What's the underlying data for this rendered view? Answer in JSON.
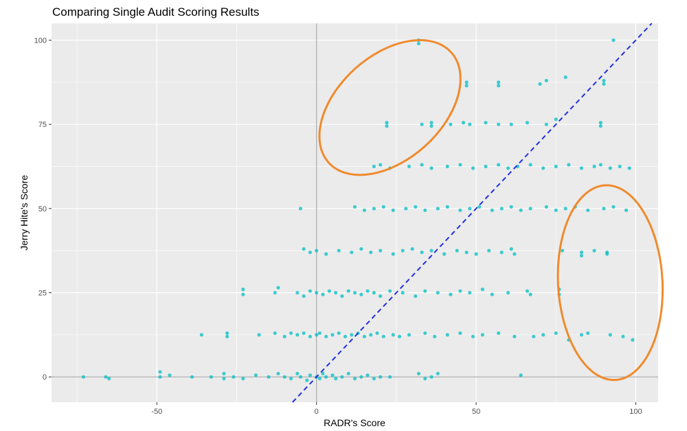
{
  "chart_data": {
    "type": "scatter",
    "title": "Comparing Single Audit Scoring Results",
    "xlabel": "RADR's Score",
    "ylabel": "Jerry Hite's Score",
    "xlim": [
      -83,
      107
    ],
    "ylim": [
      -7.5,
      105
    ],
    "x_ticks": [
      -50,
      0,
      50,
      100
    ],
    "y_ticks": [
      0,
      25,
      50,
      75,
      100
    ],
    "grid": true,
    "colors": {
      "panel": "#ebebeb",
      "grid": "#ffffff",
      "points": "#00bfc4",
      "reference_line": "#1f2fe0",
      "zero_lines": "#a6a6a6",
      "highlight": "#f08a2c"
    },
    "reference_line": {
      "slope": 1,
      "intercept": 0,
      "style": "dashed"
    },
    "highlights": [
      {
        "shape": "ellipse",
        "cx": 23,
        "cy": 80
      },
      {
        "shape": "ellipse",
        "cx": 92,
        "cy": 28
      }
    ],
    "series": [
      {
        "points": [
          [
            -73,
            0
          ],
          [
            -66,
            0
          ],
          [
            -65,
            -0.5
          ],
          [
            -49,
            1.5
          ],
          [
            -49,
            0
          ],
          [
            -46,
            0.5
          ],
          [
            -39,
            0
          ],
          [
            -33,
            0
          ],
          [
            -29,
            1
          ],
          [
            -29,
            -0.5
          ],
          [
            -26,
            0
          ],
          [
            -23,
            -0.5
          ],
          [
            -19,
            0.5
          ],
          [
            -15,
            0
          ],
          [
            -12,
            1
          ],
          [
            -10,
            0
          ],
          [
            -8,
            -0.5
          ],
          [
            -6,
            1
          ],
          [
            -5,
            0
          ],
          [
            -3,
            -1
          ],
          [
            -2,
            0.5
          ],
          [
            0,
            0
          ],
          [
            1,
            -0.5
          ],
          [
            2,
            1
          ],
          [
            3,
            0
          ],
          [
            5,
            0.5
          ],
          [
            6,
            -0.5
          ],
          [
            8,
            0
          ],
          [
            10,
            1
          ],
          [
            12,
            -0.5
          ],
          [
            14,
            0
          ],
          [
            16,
            0.5
          ],
          [
            18,
            -0.5
          ],
          [
            20,
            0
          ],
          [
            23,
            0
          ],
          [
            32,
            1
          ],
          [
            34,
            -0.5
          ],
          [
            36,
            0
          ],
          [
            38,
            1
          ],
          [
            64,
            0.5
          ],
          [
            -36,
            12.5
          ],
          [
            -28,
            13
          ],
          [
            -28,
            12
          ],
          [
            -18,
            12.5
          ],
          [
            -13,
            13
          ],
          [
            -10,
            12
          ],
          [
            -8,
            13
          ],
          [
            -6,
            12.5
          ],
          [
            -4,
            13
          ],
          [
            -2,
            12
          ],
          [
            0,
            12.5
          ],
          [
            1,
            13
          ],
          [
            3,
            12
          ],
          [
            5,
            12.5
          ],
          [
            7,
            13
          ],
          [
            9,
            12
          ],
          [
            11,
            12.5
          ],
          [
            13,
            13
          ],
          [
            15,
            12
          ],
          [
            17,
            12.5
          ],
          [
            19,
            13
          ],
          [
            21,
            12
          ],
          [
            24,
            12.5
          ],
          [
            26,
            12
          ],
          [
            29,
            12.5
          ],
          [
            34,
            13
          ],
          [
            37,
            12
          ],
          [
            41,
            12.5
          ],
          [
            45,
            13
          ],
          [
            49,
            12
          ],
          [
            52,
            12.5
          ],
          [
            57,
            13
          ],
          [
            62,
            12
          ],
          [
            68,
            12
          ],
          [
            71,
            12.5
          ],
          [
            75,
            13
          ],
          [
            79,
            11
          ],
          [
            83,
            12.5
          ],
          [
            85,
            13
          ],
          [
            92,
            12.5
          ],
          [
            96,
            12
          ],
          [
            99,
            11
          ],
          [
            -23,
            26
          ],
          [
            -23,
            24.5
          ],
          [
            -13,
            25
          ],
          [
            -12,
            26.5
          ],
          [
            -6,
            25
          ],
          [
            -4,
            24
          ],
          [
            -2,
            25.5
          ],
          [
            0,
            25
          ],
          [
            2,
            24.5
          ],
          [
            4,
            25.5
          ],
          [
            6,
            25
          ],
          [
            8,
            24
          ],
          [
            10,
            25.5
          ],
          [
            12,
            25
          ],
          [
            14,
            24.5
          ],
          [
            16,
            25.5
          ],
          [
            18,
            25
          ],
          [
            20,
            24
          ],
          [
            23,
            25.5
          ],
          [
            27,
            25
          ],
          [
            31,
            24
          ],
          [
            34,
            25.5
          ],
          [
            38,
            25
          ],
          [
            42,
            24.5
          ],
          [
            45,
            25.5
          ],
          [
            48,
            25
          ],
          [
            52,
            26
          ],
          [
            55,
            24.5
          ],
          [
            60,
            25
          ],
          [
            66,
            25.5
          ],
          [
            67,
            24.5
          ],
          [
            76,
            26
          ],
          [
            76,
            24.5
          ],
          [
            -4,
            38
          ],
          [
            -2,
            37
          ],
          [
            0,
            37.5
          ],
          [
            3,
            36.5
          ],
          [
            7,
            37.5
          ],
          [
            11,
            37
          ],
          [
            14,
            38
          ],
          [
            17,
            37
          ],
          [
            20,
            37.5
          ],
          [
            24,
            36.5
          ],
          [
            27,
            37.5
          ],
          [
            30,
            38
          ],
          [
            33,
            37
          ],
          [
            36,
            37.5
          ],
          [
            40,
            36.5
          ],
          [
            44,
            37.5
          ],
          [
            47,
            37
          ],
          [
            50,
            36.5
          ],
          [
            54,
            37.5
          ],
          [
            58,
            37
          ],
          [
            61,
            38
          ],
          [
            62,
            36.5
          ],
          [
            77,
            37.5
          ],
          [
            83,
            37
          ],
          [
            83,
            36
          ],
          [
            87,
            37.5
          ],
          [
            91,
            37
          ],
          [
            91,
            36.5
          ],
          [
            -5,
            50
          ],
          [
            12,
            50.5
          ],
          [
            15,
            49.5
          ],
          [
            18,
            50
          ],
          [
            21,
            50.5
          ],
          [
            24,
            49.5
          ],
          [
            28,
            50
          ],
          [
            31,
            50.5
          ],
          [
            34,
            49.5
          ],
          [
            38,
            50
          ],
          [
            41,
            50.5
          ],
          [
            45,
            49.5
          ],
          [
            48,
            50
          ],
          [
            51,
            50.5
          ],
          [
            55,
            49.5
          ],
          [
            58,
            50
          ],
          [
            61,
            50.5
          ],
          [
            64,
            49.5
          ],
          [
            67,
            50
          ],
          [
            72,
            50.5
          ],
          [
            75,
            49.5
          ],
          [
            78,
            50
          ],
          [
            81,
            50.5
          ],
          [
            85,
            49.5
          ],
          [
            90,
            50
          ],
          [
            93,
            50.5
          ],
          [
            97,
            49.5
          ],
          [
            18,
            62.5
          ],
          [
            20,
            63
          ],
          [
            23,
            62
          ],
          [
            29,
            62.5
          ],
          [
            33,
            63
          ],
          [
            36,
            62
          ],
          [
            41,
            62.5
          ],
          [
            45,
            63
          ],
          [
            49,
            62
          ],
          [
            53,
            62.5
          ],
          [
            57,
            63
          ],
          [
            60,
            62
          ],
          [
            63,
            62.5
          ],
          [
            67,
            63
          ],
          [
            71,
            62
          ],
          [
            75,
            62.5
          ],
          [
            79,
            63
          ],
          [
            83,
            62
          ],
          [
            87,
            62.5
          ],
          [
            89,
            63
          ],
          [
            92,
            62
          ],
          [
            95,
            62.5
          ],
          [
            98,
            62
          ],
          [
            22,
            75.5
          ],
          [
            22,
            74.5
          ],
          [
            33,
            75
          ],
          [
            36,
            75.5
          ],
          [
            36,
            74.5
          ],
          [
            42,
            75
          ],
          [
            46,
            75.5
          ],
          [
            48,
            75
          ],
          [
            53,
            75.5
          ],
          [
            57,
            75
          ],
          [
            61,
            75
          ],
          [
            66,
            75.5
          ],
          [
            72,
            75
          ],
          [
            75,
            76.5
          ],
          [
            89,
            75.5
          ],
          [
            89,
            74.5
          ],
          [
            47,
            87.5
          ],
          [
            47,
            86.5
          ],
          [
            57,
            87.5
          ],
          [
            57,
            86.5
          ],
          [
            70,
            87
          ],
          [
            72,
            88
          ],
          [
            78,
            89
          ],
          [
            90,
            88
          ],
          [
            90,
            87
          ],
          [
            32,
            100
          ],
          [
            32,
            99
          ],
          [
            93,
            100
          ]
        ]
      }
    ]
  }
}
